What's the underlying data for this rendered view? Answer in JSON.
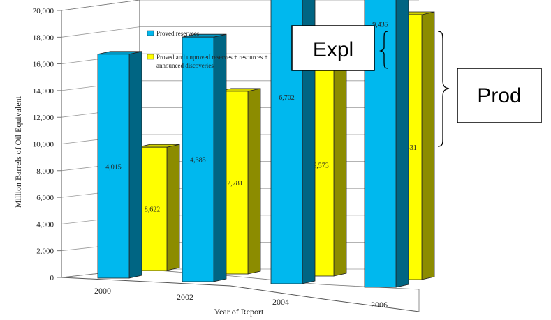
{
  "chart_data": {
    "type": "bar",
    "categories": [
      "2000",
      "2002",
      "2004",
      "2006"
    ],
    "series": [
      {
        "name": "Proved reservees",
        "color": "#00b8ee",
        "values": [
          4015,
          4385,
          6702,
          9435
        ],
        "labels": [
          "4,015",
          "4,385",
          "6,702",
          "9,435"
        ]
      },
      {
        "name": "Proved and unproved reserves + resources + announced discoveries",
        "color": "#ffff00",
        "values": [
          8622,
          12781,
          15573,
          18531
        ],
        "labels": [
          "8,622",
          "12,781",
          "15,573",
          "18,531"
        ]
      }
    ],
    "xlabel": "Year of Report",
    "ylabel": "Million Barrels of Oil Equivalent",
    "ylim": [
      0,
      20000
    ],
    "yticks": [
      "0",
      "2,000",
      "4,000",
      "6,000",
      "8,000",
      "10,000",
      "12,000",
      "14,000",
      "16,000",
      "18,000",
      "20,000"
    ],
    "grid": true,
    "legend_position": "top-center",
    "legend": {
      "item1": "Proved reservees",
      "item2_line1": "Proved and unproved reserves + resources +",
      "item2_line2": "announced discoveries"
    }
  },
  "annotations": {
    "expl": "Expl",
    "prod": "Prod"
  }
}
